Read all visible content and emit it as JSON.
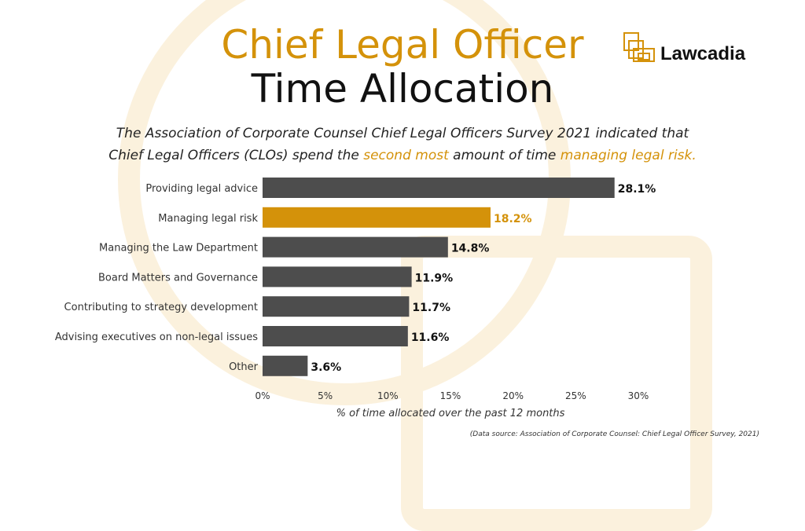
{
  "title_line1": "Chief Legal Officer",
  "title_line2": "Time Allocation",
  "subtitle": {
    "line1": "The Association of Corporate Counsel Chief Legal Officers Survey 2021 indicated that",
    "line2_a": "Chief Legal Officers (CLOs) spend the ",
    "line2_b": "second most",
    "line2_c": " amount of time ",
    "line2_d": "managing legal risk."
  },
  "logo": {
    "text": "Lawcadia"
  },
  "source": "(Data source: Association of Corporate Counsel: Chief Legal Officer Survey, 2021)",
  "colors": {
    "accent": "#d4920a",
    "bar": "#4d4d4d"
  },
  "chart_data": {
    "type": "bar",
    "orientation": "horizontal",
    "categories": [
      "Providing legal advice",
      "Managing legal risk",
      "Managing the Law Department",
      "Board Matters and Governance",
      "Contributing to strategy development",
      "Advising executives on non-legal issues",
      "Other"
    ],
    "values": [
      28.1,
      18.2,
      14.8,
      11.9,
      11.7,
      11.6,
      3.6
    ],
    "labels": [
      "28.1%",
      "18.2%",
      "14.8%",
      "11.9%",
      "11.7%",
      "11.6%",
      "3.6%"
    ],
    "highlight_index": 1,
    "xlabel": "% of time allocated over the past 12 months",
    "xlim": [
      0,
      30
    ],
    "xticks": [
      "0%",
      "5%",
      "10%",
      "15%",
      "20%",
      "25%",
      "30%"
    ],
    "grid": false
  }
}
